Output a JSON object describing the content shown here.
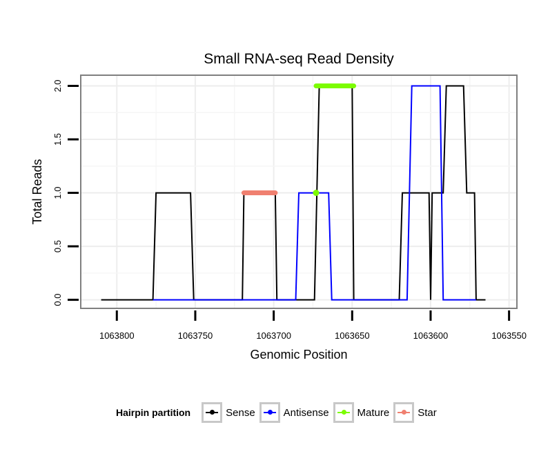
{
  "chart_data": {
    "type": "line",
    "title": "Small RNA-seq Read Density",
    "xlabel": "Genomic Position",
    "ylabel": "Total Reads",
    "x_reversed": true,
    "xlim": [
      1063823,
      1063545
    ],
    "ylim": [
      -0.08,
      2.1
    ],
    "x_ticks": [
      1063800,
      1063750,
      1063700,
      1063650,
      1063600,
      1063550
    ],
    "x_tick_labels": [
      "1063800",
      "1063750",
      "1063700",
      "1063650",
      "1063600",
      "1063550"
    ],
    "y_ticks": [
      0.0,
      0.5,
      1.0,
      1.5,
      2.0
    ],
    "y_tick_labels": [
      "0.0",
      "0.5",
      "1.0",
      "1.5",
      "2.0"
    ],
    "grid": true,
    "legend_position": "bottom",
    "series": [
      {
        "name": "Sense",
        "color": "#000000",
        "points": [
          [
            1063810,
            0
          ],
          [
            1063777,
            0
          ],
          [
            1063775,
            1
          ],
          [
            1063753,
            1
          ],
          [
            1063751,
            0
          ],
          [
            1063720,
            0
          ],
          [
            1063719,
            1
          ],
          [
            1063699,
            1
          ],
          [
            1063698,
            0
          ],
          [
            1063674,
            0
          ],
          [
            1063671,
            2
          ],
          [
            1063650,
            2
          ],
          [
            1063649,
            0
          ],
          [
            1063620,
            0
          ],
          [
            1063618,
            1
          ],
          [
            1063601,
            1
          ],
          [
            1063600,
            0
          ],
          [
            1063599,
            1
          ],
          [
            1063592,
            1
          ],
          [
            1063590,
            2
          ],
          [
            1063579,
            2
          ],
          [
            1063577,
            1
          ],
          [
            1063572,
            1
          ],
          [
            1063571,
            0
          ],
          [
            1063565,
            0
          ]
        ]
      },
      {
        "name": "Antisense",
        "color": "#0000ff",
        "points": [
          [
            1063777,
            0
          ],
          [
            1063699,
            0
          ],
          [
            1063686,
            0
          ],
          [
            1063684,
            1
          ],
          [
            1063665,
            1
          ],
          [
            1063663,
            0
          ],
          [
            1063615,
            0
          ],
          [
            1063612,
            2
          ],
          [
            1063594,
            2
          ],
          [
            1063592,
            0
          ],
          [
            1063571,
            0
          ]
        ]
      },
      {
        "name": "Mature",
        "color": "#7cfc00",
        "x_start": 1063673,
        "x_end": 1063649,
        "value": 2,
        "extra_points": [
          [
            1063673,
            1
          ]
        ]
      },
      {
        "name": "Star",
        "color": "#f08070",
        "x_start": 1063719,
        "x_end": 1063699,
        "value": 1
      }
    ]
  },
  "legend": {
    "title": "Hairpin partition",
    "items": [
      {
        "label": "Sense",
        "color": "#000000"
      },
      {
        "label": "Antisense",
        "color": "#0000ff"
      },
      {
        "label": "Mature",
        "color": "#7cfc00"
      },
      {
        "label": "Star",
        "color": "#f08070"
      }
    ]
  }
}
